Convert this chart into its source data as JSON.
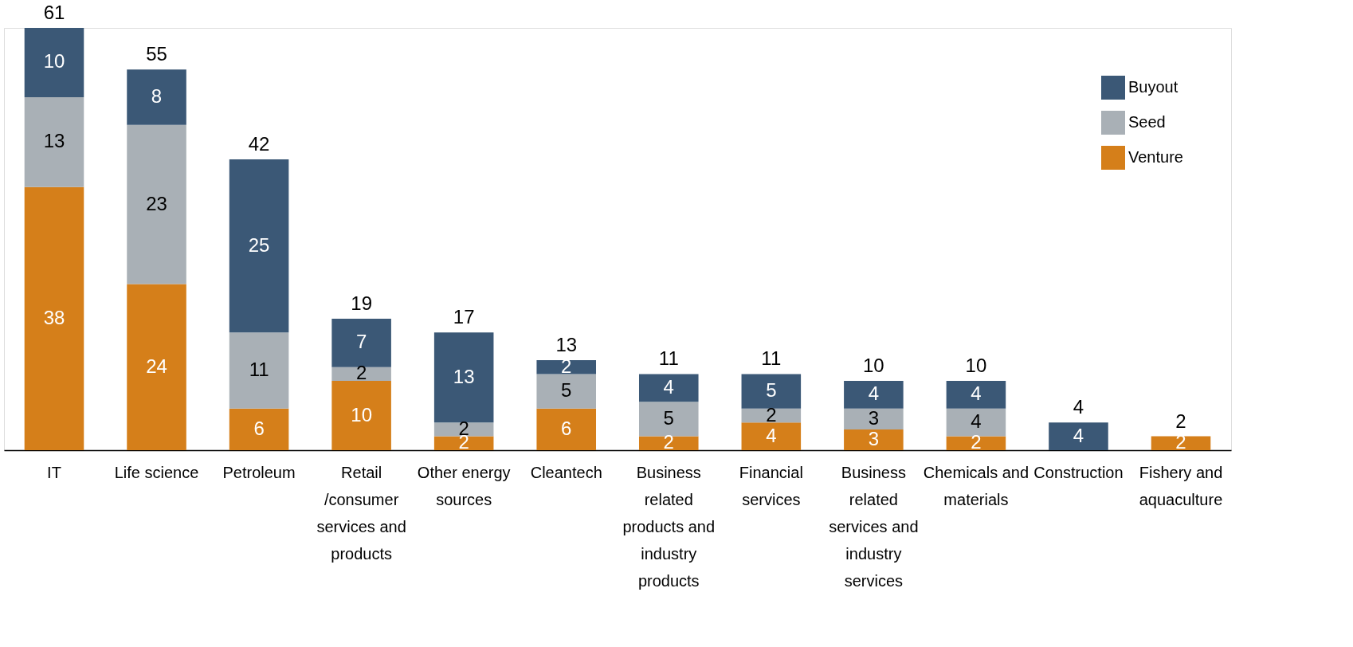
{
  "chart_data": {
    "type": "bar",
    "stacked": true,
    "data_labels": true,
    "grid": false,
    "legend": "top right",
    "categories": [
      "IT",
      "Life science",
      "Petroleum",
      "Retail /consumer services and products",
      "Other energy sources",
      "Cleantech",
      "Business related products and industry products",
      "Financial services",
      "Business related services and industry services",
      "Chemicals and materials",
      "Construction",
      "Fishery and aquaculture"
    ],
    "series": [
      {
        "name": "Venture",
        "color": "#d57f1a",
        "values": [
          38,
          24,
          6,
          10,
          2,
          6,
          2,
          4,
          3,
          2,
          null,
          2
        ]
      },
      {
        "name": "Seed",
        "color": "#a9b0b6",
        "values": [
          13,
          23,
          11,
          2,
          2,
          5,
          5,
          2,
          3,
          4,
          null,
          null
        ]
      },
      {
        "name": "Buyout",
        "color": "#3b5876",
        "values": [
          10,
          8,
          25,
          7,
          13,
          2,
          4,
          5,
          4,
          4,
          4,
          null
        ]
      }
    ],
    "totals": [
      "61",
      "55",
      "42",
      "19",
      "17",
      "13",
      "11",
      "11",
      "10",
      "10",
      "4",
      "2"
    ]
  }
}
